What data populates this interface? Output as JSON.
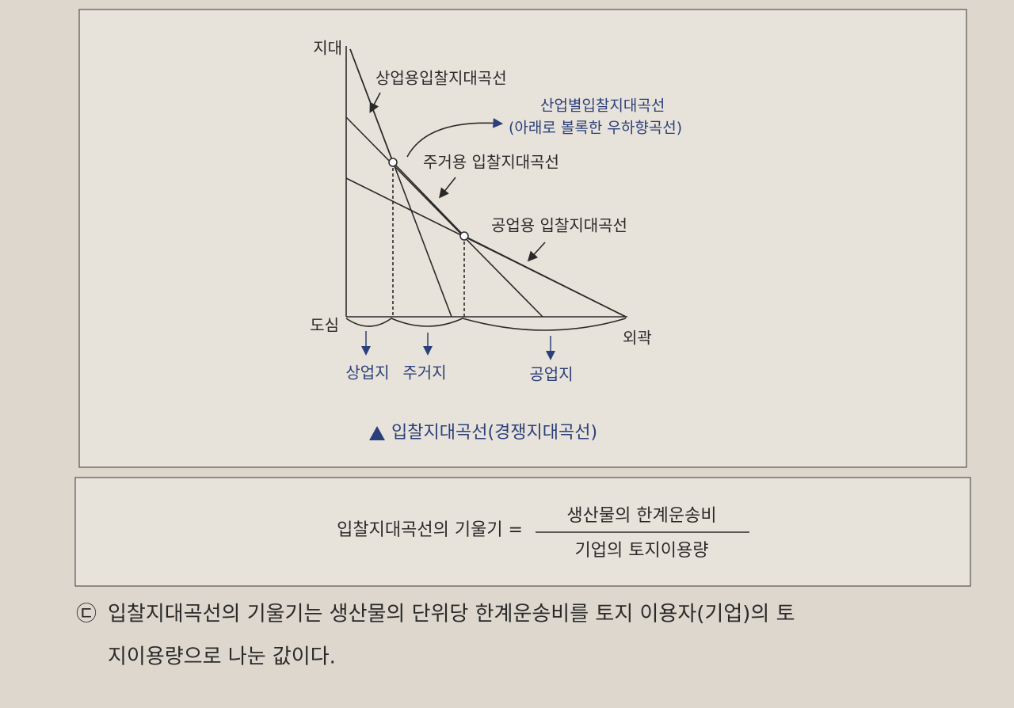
{
  "diagram": {
    "y_axis": "지대",
    "origin": "도심",
    "outskirts": "외곽",
    "commercial_curve": "상업용입찰지대곡선",
    "industry_curve": "산업별입찰지대곡선",
    "industry_curve_note": "(아래로 볼록한 우하향곡선)",
    "residential_curve": "주거용 입찰지대곡선",
    "industrial_curve": "공업용 입찰지대곡선",
    "zones": [
      "상업지",
      "주거지",
      "공업지"
    ],
    "caption": "입찰지대곡선(경쟁지대곡선)"
  },
  "formula": {
    "left": "입찰지대곡선의 기울기 =",
    "numerator": "생산물의 한계운송비",
    "denominator": "기업의 토지이용량"
  },
  "paragraph": {
    "marker": "㉢",
    "lines": [
      "입찰지대곡선의 기울기는 생산물의 단위당 한계운송비를 토지 이용자(기업)의 토",
      "지이용량으로 나눈 값이다."
    ]
  }
}
